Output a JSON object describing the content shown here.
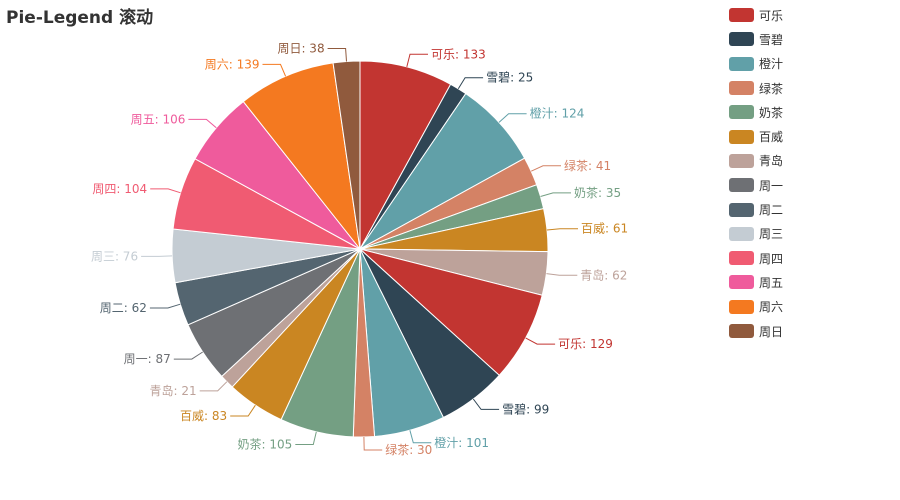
{
  "chart_data": {
    "type": "pie",
    "title": "Pie-Legend 滚动",
    "legend_position": "right",
    "legend": [
      "可乐",
      "雪碧",
      "橙汁",
      "绿茶",
      "奶茶",
      "百威",
      "青岛",
      "周一",
      "周二",
      "周三",
      "周四",
      "周五",
      "周六",
      "周日"
    ],
    "colors": {
      "可乐": "#c23531",
      "雪碧": "#2f4554",
      "橙汁": "#61a0a8",
      "绿茶": "#d48265",
      "奶茶": "#749f83",
      "百威": "#ca8622",
      "青岛": "#bda29a",
      "周一": "#6e7074",
      "周二": "#546570",
      "周三": "#c4ccd3",
      "周四": "#f05b72",
      "周五": "#ef5b9c",
      "周六": "#f47920",
      "周日": "#905a3d"
    },
    "slices": [
      {
        "name": "可乐",
        "value": 133
      },
      {
        "name": "雪碧",
        "value": 25
      },
      {
        "name": "橙汁",
        "value": 124
      },
      {
        "name": "绿茶",
        "value": 41
      },
      {
        "name": "奶茶",
        "value": 35
      },
      {
        "name": "百威",
        "value": 61
      },
      {
        "name": "青岛",
        "value": 62
      },
      {
        "name": "可乐",
        "value": 129
      },
      {
        "name": "雪碧",
        "value": 99
      },
      {
        "name": "橙汁",
        "value": 101
      },
      {
        "name": "绿茶",
        "value": 30
      },
      {
        "name": "奶茶",
        "value": 105
      },
      {
        "name": "百威",
        "value": 83
      },
      {
        "name": "青岛",
        "value": 21
      },
      {
        "name": "周一",
        "value": 87
      },
      {
        "name": "周二",
        "value": 62
      },
      {
        "name": "周三",
        "value": 76
      },
      {
        "name": "周四",
        "value": 104
      },
      {
        "name": "周五",
        "value": 106
      },
      {
        "name": "周六",
        "value": 139
      },
      {
        "name": "周日",
        "value": 38
      }
    ]
  }
}
